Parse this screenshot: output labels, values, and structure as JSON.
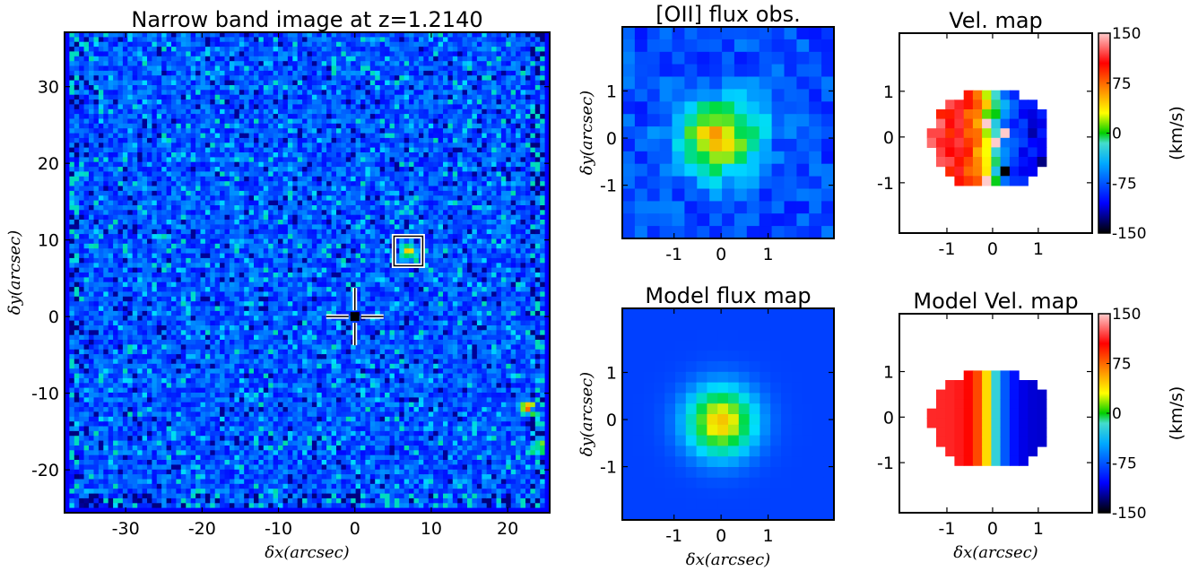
{
  "chart_data": [
    {
      "type": "image",
      "title": "Narrow band image at z=1.2140",
      "xlabel": "δx(arcsec)",
      "ylabel": "δy(arcsec)",
      "xlim": [
        -38,
        25.5
      ],
      "ylim": [
        -25.6,
        37.1
      ],
      "xticks": [
        -30,
        -20,
        -10,
        0,
        10,
        20
      ],
      "yticks": [
        -20,
        -10,
        0,
        10,
        20,
        30
      ]
    },
    {
      "type": "image",
      "title": "[OII] flux obs.",
      "ylabel": "δy(arcsec)",
      "xlim": [
        -2.1,
        2.4
      ],
      "ylim": [
        -2.13,
        2.36
      ],
      "xticks": [
        -1,
        0,
        1
      ],
      "yticks": [
        -1,
        0,
        1
      ]
    },
    {
      "type": "image",
      "title": "Vel. map",
      "xlim": [
        -2.04,
        2.18
      ],
      "ylim": [
        -2.1,
        2.27
      ],
      "xticks": [
        -1,
        0,
        1
      ],
      "yticks": [
        -1,
        0,
        1
      ],
      "colorbar": {
        "label": "(km/s)",
        "lim": [
          -150,
          150
        ],
        "ticks": [
          150,
          75,
          0,
          -75,
          -150
        ]
      }
    },
    {
      "type": "image",
      "title": "Model flux map",
      "xlabel": "δx(arcsec)",
      "ylabel": "δy(arcsec)",
      "xlim": [
        -2.1,
        2.4
      ],
      "ylim": [
        -2.13,
        2.36
      ],
      "xticks": [
        -1,
        0,
        1
      ],
      "yticks": [
        -1,
        0,
        1
      ]
    },
    {
      "type": "image",
      "title": "Model Vel. map",
      "xlabel": "δx(arcsec)",
      "xlim": [
        -2.04,
        2.18
      ],
      "ylim": [
        -2.1,
        2.27
      ],
      "xticks": [
        -1,
        0,
        1
      ],
      "yticks": [
        -1,
        0,
        1
      ],
      "colorbar": {
        "label": "(km/s)",
        "lim": [
          -150,
          150
        ],
        "ticks": [
          150,
          75,
          0,
          -75,
          -150
        ]
      }
    }
  ]
}
